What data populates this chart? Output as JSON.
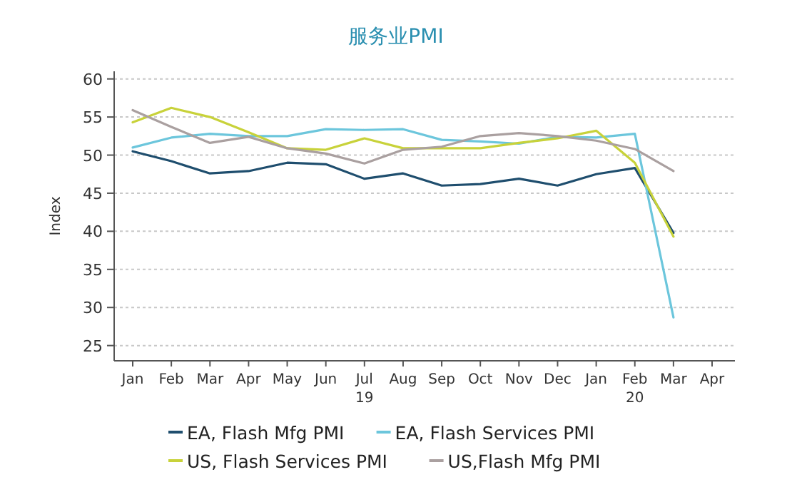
{
  "chart_data": {
    "type": "line",
    "title": "服务业PMI",
    "ylabel": "Index",
    "categories": [
      "Jan",
      "Feb",
      "Mar",
      "Apr",
      "May",
      "Jun",
      "Jul",
      "Aug",
      "Sep",
      "Oct",
      "Nov",
      "Dec",
      "Jan",
      "Feb",
      "Mar",
      "Apr"
    ],
    "annotations": [
      "19",
      "20"
    ],
    "series": [
      {
        "name": "EA, Flash Mfg PMI",
        "color": "#1f4e6e",
        "values": [
          50.5,
          49.2,
          47.6,
          47.9,
          49.0,
          48.8,
          46.9,
          47.6,
          46.0,
          46.2,
          46.9,
          46.0,
          47.5,
          48.3,
          39.8,
          null
        ]
      },
      {
        "name": "EA, Flash Services PMI",
        "color": "#6cc6dc",
        "values": [
          51.0,
          52.3,
          52.8,
          52.5,
          52.5,
          53.4,
          53.3,
          53.4,
          52.0,
          51.8,
          51.5,
          52.4,
          52.3,
          52.8,
          28.7,
          null
        ]
      },
      {
        "name": "US, Flash Services PMI",
        "color": "#c8d23a",
        "values": [
          54.3,
          56.2,
          55.0,
          53.0,
          50.9,
          50.7,
          52.2,
          50.9,
          50.9,
          50.9,
          51.6,
          52.2,
          53.2,
          49.0,
          39.3,
          null
        ]
      },
      {
        "name": "US,Flash Mfg PMI",
        "color": "#aaa0a0",
        "values": [
          55.9,
          53.7,
          51.6,
          52.4,
          50.9,
          50.2,
          48.9,
          50.7,
          51.1,
          52.5,
          52.9,
          52.5,
          51.9,
          50.8,
          47.9,
          null
        ]
      }
    ],
    "ylim": [
      23,
      61
    ],
    "yticks": [
      25,
      30,
      35,
      40,
      45,
      50,
      55,
      60
    ],
    "grid": "y",
    "legend": "bottom",
    "marker": "none",
    "line_style": "solid"
  }
}
